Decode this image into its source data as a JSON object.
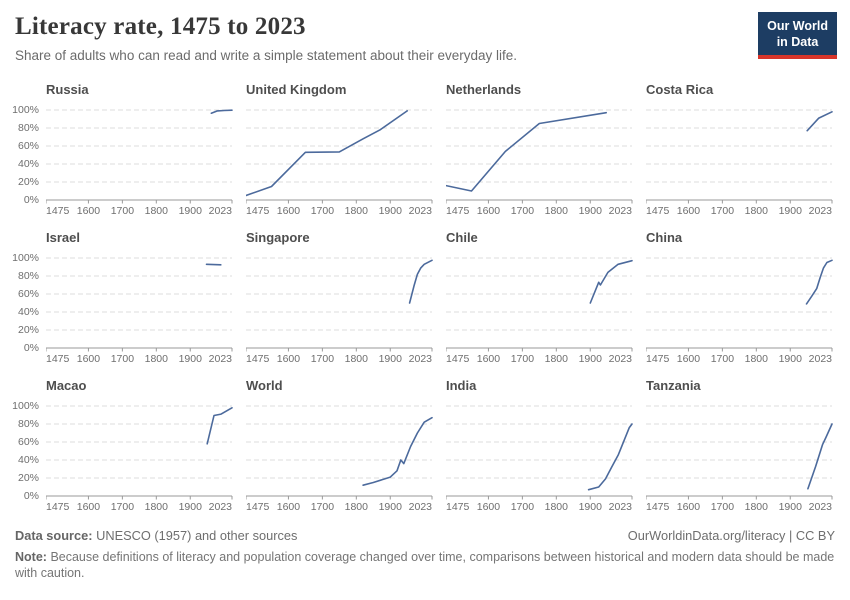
{
  "header": {
    "title": "Literacy rate, 1475 to 2023",
    "subtitle": "Share of adults who can read and write a simple statement about their everyday life.",
    "logo": {
      "line1": "Our World",
      "line2": "in Data",
      "bg": "#1d3d63",
      "accent": "#d8352a"
    }
  },
  "chart_data": {
    "type": "line",
    "title": "Literacy rate, 1475 to 2023",
    "xlabel": "",
    "ylabel": "",
    "x_range": [
      1475,
      2023
    ],
    "y_range": [
      0,
      100
    ],
    "x_tick_labels": [
      "1475",
      "1600",
      "1700",
      "1800",
      "1900",
      "2023"
    ],
    "x_tick_values": [
      1475,
      1600,
      1700,
      1800,
      1900,
      2023
    ],
    "y_tick_labels": [
      "0%",
      "20%",
      "40%",
      "60%",
      "80%",
      "100%"
    ],
    "y_tick_values": [
      0,
      20,
      40,
      60,
      80,
      100
    ],
    "grid": "dashed-horizontal",
    "line_color": "#4c6a9c",
    "grid_color": "#dcdcdc",
    "axis_color": "#999999",
    "tick_label_color": "#6e6e6e",
    "facets": [
      {
        "name": "Russia",
        "points": [
          [
            1962,
            96.5
          ],
          [
            1980,
            99
          ],
          [
            2000,
            99.5
          ],
          [
            2023,
            99.8
          ]
        ]
      },
      {
        "name": "United Kingdom",
        "points": [
          [
            1475,
            5
          ],
          [
            1550,
            15
          ],
          [
            1650,
            53
          ],
          [
            1750,
            53.5
          ],
          [
            1820,
            68
          ],
          [
            1870,
            78
          ],
          [
            1950,
            99
          ]
        ]
      },
      {
        "name": "Netherlands",
        "points": [
          [
            1475,
            16
          ],
          [
            1550,
            10
          ],
          [
            1650,
            54
          ],
          [
            1750,
            85
          ],
          [
            1947,
            97
          ]
        ]
      },
      {
        "name": "Costa Rica",
        "points": [
          [
            1950,
            77
          ],
          [
            1984,
            91
          ],
          [
            2023,
            98
          ]
        ]
      },
      {
        "name": "Israel",
        "points": [
          [
            1948,
            93
          ],
          [
            1990,
            92.5
          ]
        ]
      },
      {
        "name": "Singapore",
        "points": [
          [
            1957,
            50
          ],
          [
            1970,
            69
          ],
          [
            1980,
            82
          ],
          [
            1990,
            89
          ],
          [
            2000,
            93
          ],
          [
            2023,
            97.5
          ]
        ]
      },
      {
        "name": "Chile",
        "points": [
          [
            1900,
            50
          ],
          [
            1925,
            73
          ],
          [
            1930,
            70
          ],
          [
            1952,
            84
          ],
          [
            1982,
            93
          ],
          [
            2023,
            97
          ]
        ]
      },
      {
        "name": "China",
        "points": [
          [
            1948,
            49
          ],
          [
            1964,
            58
          ],
          [
            1978,
            66
          ],
          [
            1988,
            78
          ],
          [
            1998,
            89
          ],
          [
            2008,
            95
          ],
          [
            2023,
            97.5
          ]
        ]
      },
      {
        "name": "Macao",
        "points": [
          [
            1950,
            58
          ],
          [
            1970,
            89.5
          ],
          [
            1991,
            91
          ],
          [
            2023,
            98
          ]
        ]
      },
      {
        "name": "World",
        "points": [
          [
            1820,
            12
          ],
          [
            1850,
            15
          ],
          [
            1900,
            21
          ],
          [
            1920,
            28
          ],
          [
            1931,
            40
          ],
          [
            1940,
            36
          ],
          [
            1960,
            55
          ],
          [
            1980,
            70
          ],
          [
            2000,
            82
          ],
          [
            2023,
            87
          ]
        ]
      },
      {
        "name": "India",
        "points": [
          [
            1895,
            7
          ],
          [
            1925,
            10
          ],
          [
            1945,
            19
          ],
          [
            1963,
            32
          ],
          [
            1983,
            46
          ],
          [
            2000,
            62
          ],
          [
            2015,
            76
          ],
          [
            2023,
            80
          ]
        ]
      },
      {
        "name": "Tanzania",
        "points": [
          [
            1952,
            8
          ],
          [
            1975,
            33
          ],
          [
            1995,
            57
          ],
          [
            2005,
            65
          ],
          [
            2023,
            80
          ]
        ]
      }
    ]
  },
  "footer": {
    "source_label": "Data source:",
    "source_text": "UNESCO (1957) and other sources",
    "attribution": "OurWorldinData.org/literacy | CC BY",
    "note_label": "Note:",
    "note_text": "Because definitions of literacy and population coverage changed over time, comparisons between historical and modern data should be made with caution."
  }
}
